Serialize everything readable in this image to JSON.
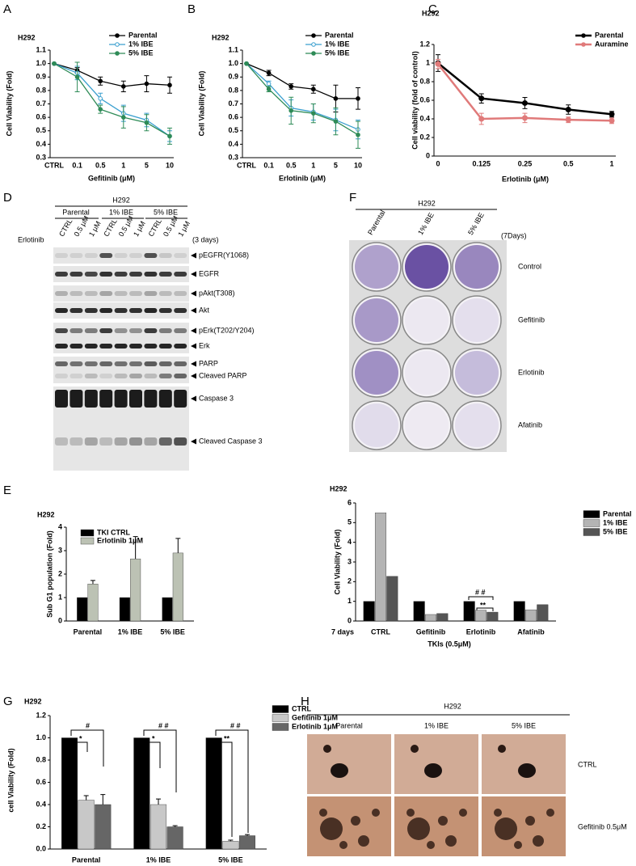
{
  "panel_labels": [
    "A",
    "B",
    "C",
    "D",
    "E",
    "F",
    "G",
    "H"
  ],
  "chart_data": [
    {
      "type": "line",
      "title": "H292",
      "xlabel": "Gefitinib (μM)",
      "ylabel": "Cell Viability (Fold)",
      "categories": [
        "CTRL",
        "0.1",
        "0.5",
        "1",
        "5",
        "10"
      ],
      "ylim": [
        0.3,
        1.1
      ],
      "yticks": [
        0.3,
        0.4,
        0.5,
        0.6,
        0.7,
        0.8,
        0.9,
        {
          "value": 1,
          "label": "1.0"
        },
        1.1
      ],
      "series": [
        {
          "name": "Parental",
          "color": "#000000",
          "values": [
            1,
            0.95,
            0.87,
            0.83,
            0.85,
            0.84
          ],
          "errors": [
            0,
            0.02,
            0.03,
            0.04,
            0.06,
            0.06
          ]
        },
        {
          "name": "1% IBE",
          "color": "#3a9fcf",
          "values": [
            1,
            0.93,
            0.74,
            0.63,
            0.58,
            0.46
          ],
          "errors": [
            0,
            0.05,
            0.04,
            0.06,
            0.05,
            0.04
          ]
        },
        {
          "name": "5% IBE",
          "color": "#2e8b57",
          "values": [
            1,
            0.9,
            0.66,
            0.6,
            0.56,
            0.46
          ],
          "errors": [
            0,
            0.11,
            0.03,
            0.08,
            0.06,
            0.06
          ]
        }
      ]
    },
    {
      "type": "line",
      "title": "H292",
      "xlabel": "Erlotinib (μM)",
      "ylabel": "Cell Viability (Fold)",
      "categories": [
        "CTRL",
        "0.1",
        "0.5",
        "1",
        "5",
        "10"
      ],
      "ylim": [
        0.3,
        1.1
      ],
      "yticks": [
        0.3,
        0.4,
        0.5,
        0.6,
        0.7,
        0.8,
        0.9,
        {
          "value": 1,
          "label": "1.0"
        },
        1.1
      ],
      "series": [
        {
          "name": "Parental",
          "color": "#000000",
          "values": [
            1,
            0.93,
            0.83,
            0.81,
            0.74,
            0.74
          ],
          "errors": [
            0,
            0.02,
            0.02,
            0.03,
            0.1,
            0.08
          ]
        },
        {
          "name": "1% IBE",
          "color": "#3a9fcf",
          "values": [
            1,
            0.85,
            0.67,
            0.64,
            0.58,
            0.51
          ],
          "errors": [
            0,
            0.02,
            0.06,
            0.06,
            0.08,
            0.07
          ]
        },
        {
          "name": "5% IBE",
          "color": "#2e8b57",
          "values": [
            1,
            0.81,
            0.65,
            0.63,
            0.57,
            0.47
          ],
          "errors": [
            0,
            0.02,
            0.1,
            0.07,
            0.1,
            0.1
          ]
        }
      ]
    },
    {
      "type": "line",
      "title": "H292",
      "xlabel": "Erlotinib (μM)",
      "ylabel": "Cell viability (fold of control)",
      "categories": [
        "0",
        "0.125",
        "0.25",
        "0.5",
        "1"
      ],
      "ylim": [
        0,
        1.2
      ],
      "yticks": [
        0,
        0.2,
        0.4,
        0.6,
        0.8,
        1,
        1.2
      ],
      "series": [
        {
          "name": "Parental",
          "color": "#000000",
          "values": [
            1,
            0.62,
            0.57,
            0.5,
            0.45
          ],
          "errors": [
            0.09,
            0.05,
            0.06,
            0.05,
            0.03
          ]
        },
        {
          "name": "Auramine",
          "color": "#e07a7a",
          "values": [
            0.99,
            0.4,
            0.41,
            0.39,
            0.38
          ],
          "errors": [
            0.05,
            0.06,
            0.05,
            0.03,
            0.03
          ]
        }
      ]
    },
    {
      "type": "bar",
      "title": "H292",
      "ylabel": "Sub G1 population (Fold)",
      "categories": [
        "Parental",
        "1% IBE",
        "5% IBE"
      ],
      "ylim": [
        0,
        4
      ],
      "yticks": [
        0,
        1,
        2,
        3,
        4
      ],
      "series": [
        {
          "name": "TKI CTRL",
          "color": "#000000",
          "values": [
            1,
            1,
            1
          ]
        },
        {
          "name": "Erlotinib 1μM",
          "color": "#bcc2b4",
          "values": [
            1.58,
            2.65,
            2.9
          ],
          "errors": [
            0.15,
            0.95,
            0.62
          ]
        }
      ]
    },
    {
      "type": "bar",
      "title": "H292",
      "xlabel": "TKIs (0.5μM)",
      "ylabel": "Cell Viability (Fold)",
      "categories": [
        "CTRL",
        "Gefitinib",
        "Erlotinib",
        "Afatinib"
      ],
      "ylim": [
        0,
        6
      ],
      "yticks": [
        0,
        1,
        2,
        3,
        4,
        5,
        6
      ],
      "annotations": [
        "7 days",
        "# #",
        "**"
      ],
      "series": [
        {
          "name": "Parental",
          "color": "#000000",
          "values": [
            1,
            1,
            1,
            1
          ]
        },
        {
          "name": "1% IBE",
          "color": "#b4b4b4",
          "values": [
            5.5,
            0.33,
            0.55,
            0.57
          ]
        },
        {
          "name": "5% IBE",
          "color": "#555555",
          "values": [
            2.27,
            0.38,
            0.45,
            0.83
          ]
        }
      ]
    },
    {
      "type": "bar",
      "title": "H292",
      "ylabel": "cell Viability (Fold)",
      "categories": [
        "Parental",
        "1% IBE",
        "5% IBE"
      ],
      "ylim": [
        0,
        1.2
      ],
      "yticks": [
        {
          "value": 0,
          "label": "0.0"
        },
        0.2,
        0.4,
        0.6,
        0.8,
        {
          "value": 1,
          "label": "1.0"
        },
        1.2
      ],
      "annotations": [
        "#",
        "*",
        "# #",
        "*",
        "# #",
        "**"
      ],
      "series": [
        {
          "name": "CTRL",
          "color": "#000000",
          "values": [
            1,
            1,
            1
          ]
        },
        {
          "name": "Gefitinib 1μM",
          "color": "#c8c8c8",
          "values": [
            0.44,
            0.4,
            0.07
          ],
          "errors": [
            0.04,
            0.05,
            0.01
          ]
        },
        {
          "name": "Erlotinib 1μM",
          "color": "#666666",
          "values": [
            0.4,
            0.2,
            0.12
          ],
          "errors": [
            0.09,
            0.01,
            0.01
          ]
        }
      ]
    }
  ],
  "blot": {
    "title": "H292",
    "groups": [
      "Parental",
      "1% IBE",
      "5% IBE"
    ],
    "lanes": [
      "CTRL",
      "0.5 μM",
      "1 μM",
      "CTRL",
      "0.5 μM",
      "1 μM",
      "CTRL",
      "0.5 μM",
      "1 μM"
    ],
    "treatment": "Erlotinib",
    "duration": "(3 days)",
    "bands": [
      "pEGFR(Y1068)",
      "EGFR",
      "pAkt(T308)",
      "Akt",
      "pErk(T202/Y204)",
      "Erk",
      "PARP",
      "Cleaved PARP",
      "Caspase 3",
      "Cleaved Caspase 3"
    ]
  },
  "colony": {
    "title": "H292",
    "columns": [
      "Parental",
      "1% IBE",
      "5% IBE"
    ],
    "duration": "(7Days)",
    "rows": [
      "Control",
      "Gefitinib",
      "Erlotinib",
      "Afatinib"
    ]
  },
  "spheroid": {
    "title": "H292",
    "columns": [
      "Parental",
      "1% IBE",
      "5% IBE"
    ],
    "rows": [
      "CTRL",
      "Gefitinib 0.5μM"
    ]
  }
}
